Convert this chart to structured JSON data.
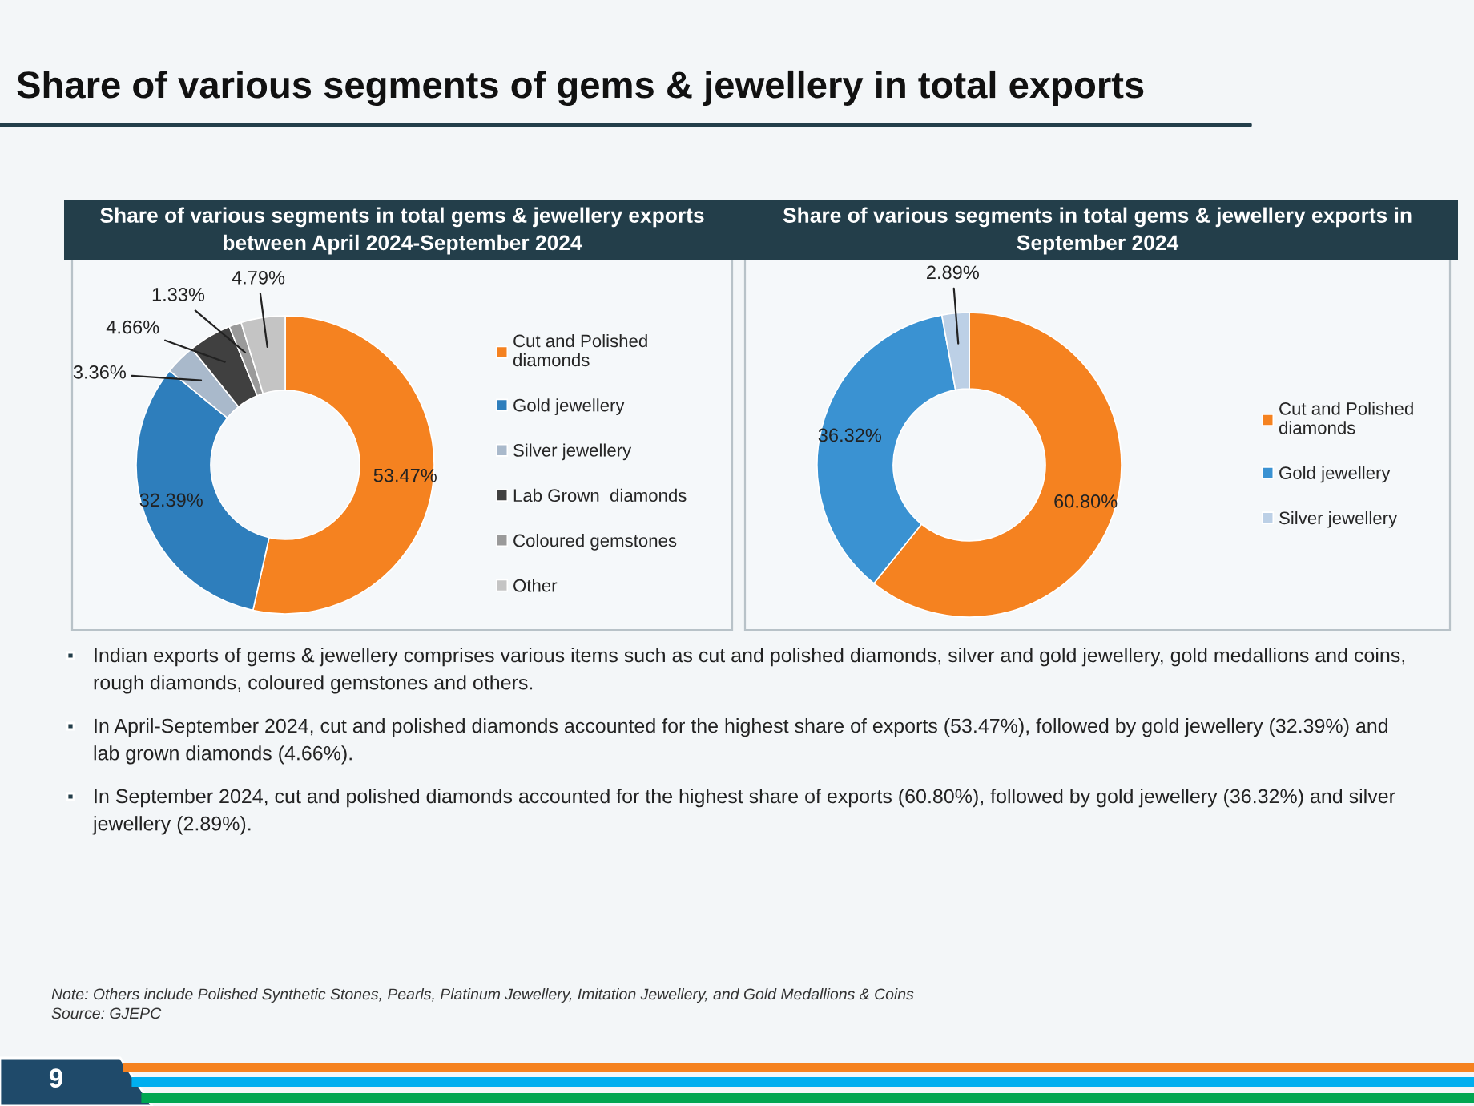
{
  "chart_data": [
    {
      "type": "donut",
      "title": "Share of various segments in total gems & jewellery exports between April 2024-September 2024",
      "categories": [
        "Cut and Polished diamonds",
        "Gold jewellery",
        "Silver jewellery",
        "Lab Grown  diamonds",
        "Coloured gemstones",
        "Other"
      ],
      "values": [
        53.47,
        32.39,
        3.36,
        4.66,
        1.33,
        4.79
      ],
      "value_labels": [
        "53.47%",
        "32.39%",
        "3.36%",
        "4.66%",
        "1.33%",
        "4.79%"
      ],
      "colors": [
        "#f58220",
        "#2e7ebc",
        "#a9b9cb",
        "#404040",
        "#9a9a9a",
        "#c4c4c4"
      ],
      "legend": "right",
      "annotations": [
        "Share of various segments of gems & jewellery in total exports"
      ]
    },
    {
      "type": "donut",
      "title": "Share of various segments in total gems & jewellery exports in September 2024",
      "categories": [
        "Cut and Polished diamonds",
        "Gold jewellery",
        "Silver jewellery"
      ],
      "values": [
        60.8,
        36.32,
        2.89
      ],
      "value_labels": [
        "60.80%",
        "36.32%",
        "2.89%"
      ],
      "colors": [
        "#f58220",
        "#3a92d2",
        "#bcd0e6"
      ],
      "legend": "right",
      "annotations": [
        "Indian exports of gems & jewellery comprises various items such as cut and polished diamonds, silver and gold jewellery, gold medallions and coins, rough diamonds, coloured gemstones and others.",
        "In April-September 2024, cut and polished diamonds accounted for the highest share of exports (53.47%), followed by gold jewellery (32.39%) and lab grown diamonds (4.66%).",
        "In September 2024, cut and polished diamonds accounted for the highest share of exports (60.80%), followed by gold jewellery (36.32%) and silver jewellery (2.89%).",
        "Note: Others include Polished Synthetic Stones, Pearls, Platinum Jewellery, Imitation Jewellery, and Gold Medallions & Coins",
        "Source: GJEPC",
        "9"
      ]
    }
  ]
}
